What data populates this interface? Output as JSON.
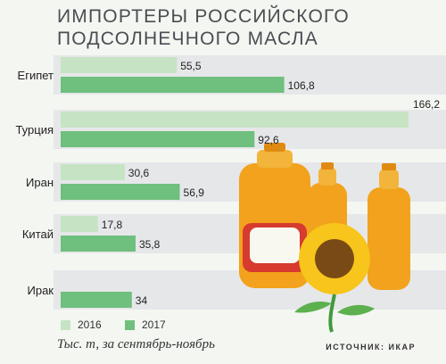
{
  "title_line1": "ИМПОРТЕРЫ РОССИЙСКОГО",
  "title_line2": "ПОДСОЛНЕЧНОГО МАСЛА",
  "footnote": "Тыс. т, за сентябрь-ноябрь",
  "source": "ИСТОЧНИК: ИКАР",
  "colors": {
    "series_2016": "#c6e3c3",
    "series_2017": "#6fbf7e",
    "band": "#e6e7e9",
    "panel": "#f4f6f2"
  },
  "chart_data": {
    "type": "bar",
    "orientation": "horizontal",
    "categories": [
      "Египет",
      "Турция",
      "Иран",
      "Китай",
      "Ирак"
    ],
    "series": [
      {
        "name": "2016",
        "values": [
          55.5,
          166.2,
          30.6,
          17.8,
          null
        ],
        "labels": [
          "55,5",
          "166,2",
          "30,6",
          "17,8",
          ""
        ]
      },
      {
        "name": "2017",
        "values": [
          106.8,
          92.6,
          56.9,
          35.8,
          34
        ],
        "labels": [
          "106,8",
          "92,6",
          "56,9",
          "35,8",
          "34"
        ]
      }
    ],
    "unit": "Тыс. т",
    "legend_position": "bottom-left",
    "grid": false
  }
}
